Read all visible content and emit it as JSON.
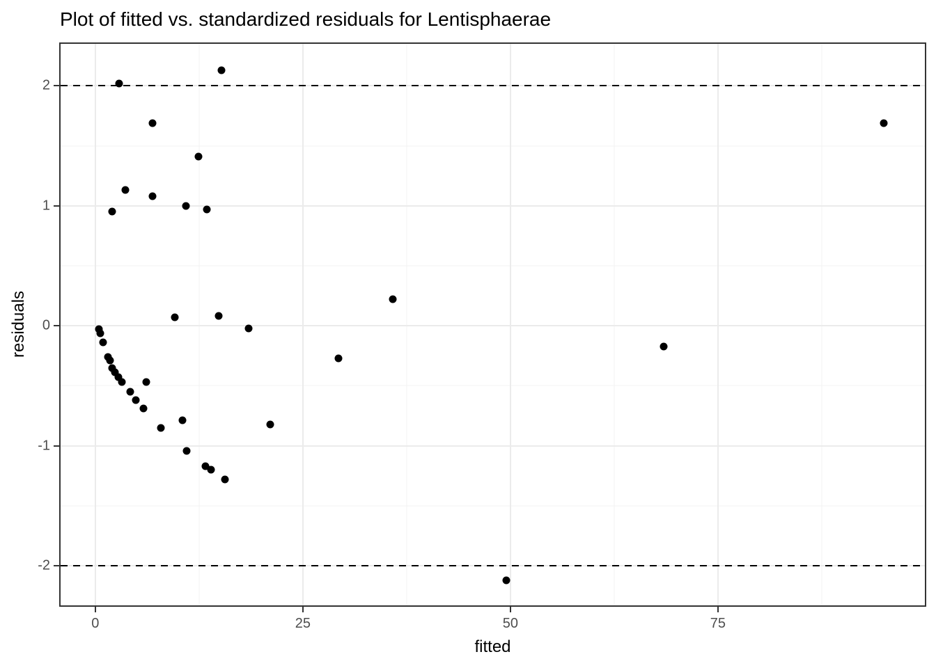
{
  "title": "Plot of fitted vs. standardized residuals for Lentisphaerae",
  "chart_data": {
    "type": "scatter",
    "title": "Plot of fitted vs. standardized residuals for Lentisphaerae",
    "xlabel": "fitted",
    "ylabel": "residuals",
    "xlim": [
      -4.18,
      99.92
    ],
    "ylim": [
      -2.33,
      2.35
    ],
    "grid": true,
    "legend": "none",
    "x_ticks": [
      {
        "value": 0,
        "label": "0"
      },
      {
        "value": 25,
        "label": "25"
      },
      {
        "value": 50,
        "label": "50"
      },
      {
        "value": 75,
        "label": "75"
      }
    ],
    "y_ticks": [
      {
        "value": -2,
        "label": "-2"
      },
      {
        "value": -1,
        "label": "-1"
      },
      {
        "value": 0,
        "label": "0"
      },
      {
        "value": 1,
        "label": "1"
      },
      {
        "value": 2,
        "label": "2"
      }
    ],
    "x_minor_gridlines": [
      12.5,
      37.5,
      62.5,
      87.5
    ],
    "y_minor_gridlines": [
      -1.5,
      -0.5,
      0.5,
      1.5
    ],
    "reference_lines": [
      {
        "y": 2,
        "style": "dashed",
        "color": "#000000"
      },
      {
        "y": -2,
        "style": "dashed",
        "color": "#000000"
      }
    ],
    "point_color": "#000000",
    "points": [
      [
        2.9,
        2.02
      ],
      [
        15.2,
        2.13
      ],
      [
        6.9,
        1.69
      ],
      [
        95.0,
        1.69
      ],
      [
        12.4,
        1.41
      ],
      [
        3.6,
        1.13
      ],
      [
        6.9,
        1.08
      ],
      [
        10.9,
        1.0
      ],
      [
        13.4,
        0.97
      ],
      [
        2.0,
        0.95
      ],
      [
        35.8,
        0.22
      ],
      [
        9.6,
        0.07
      ],
      [
        14.9,
        0.08
      ],
      [
        18.5,
        -0.02
      ],
      [
        0.45,
        -0.03
      ],
      [
        0.6,
        -0.06
      ],
      [
        0.9,
        -0.14
      ],
      [
        1.55,
        -0.26
      ],
      [
        1.75,
        -0.29
      ],
      [
        2.0,
        -0.35
      ],
      [
        2.4,
        -0.39
      ],
      [
        2.8,
        -0.43
      ],
      [
        3.2,
        -0.47
      ],
      [
        6.1,
        -0.47
      ],
      [
        4.2,
        -0.55
      ],
      [
        4.9,
        -0.62
      ],
      [
        5.8,
        -0.69
      ],
      [
        7.9,
        -0.85
      ],
      [
        10.5,
        -0.79
      ],
      [
        21.1,
        -0.82
      ],
      [
        29.3,
        -0.27
      ],
      [
        68.5,
        -0.17
      ],
      [
        11.0,
        -1.04
      ],
      [
        13.3,
        -1.17
      ],
      [
        13.9,
        -1.2
      ],
      [
        15.6,
        -1.28
      ],
      [
        49.5,
        -2.12
      ]
    ],
    "colors": {
      "background": "#ffffff",
      "panel_border": "#333333",
      "grid_major": "#ebebeb",
      "grid_minor": "#f3f3f3",
      "point": "#000000",
      "reference_line": "#000000",
      "tick_label": "#4d4d4d",
      "axis_title": "#000000",
      "title": "#000000"
    }
  }
}
